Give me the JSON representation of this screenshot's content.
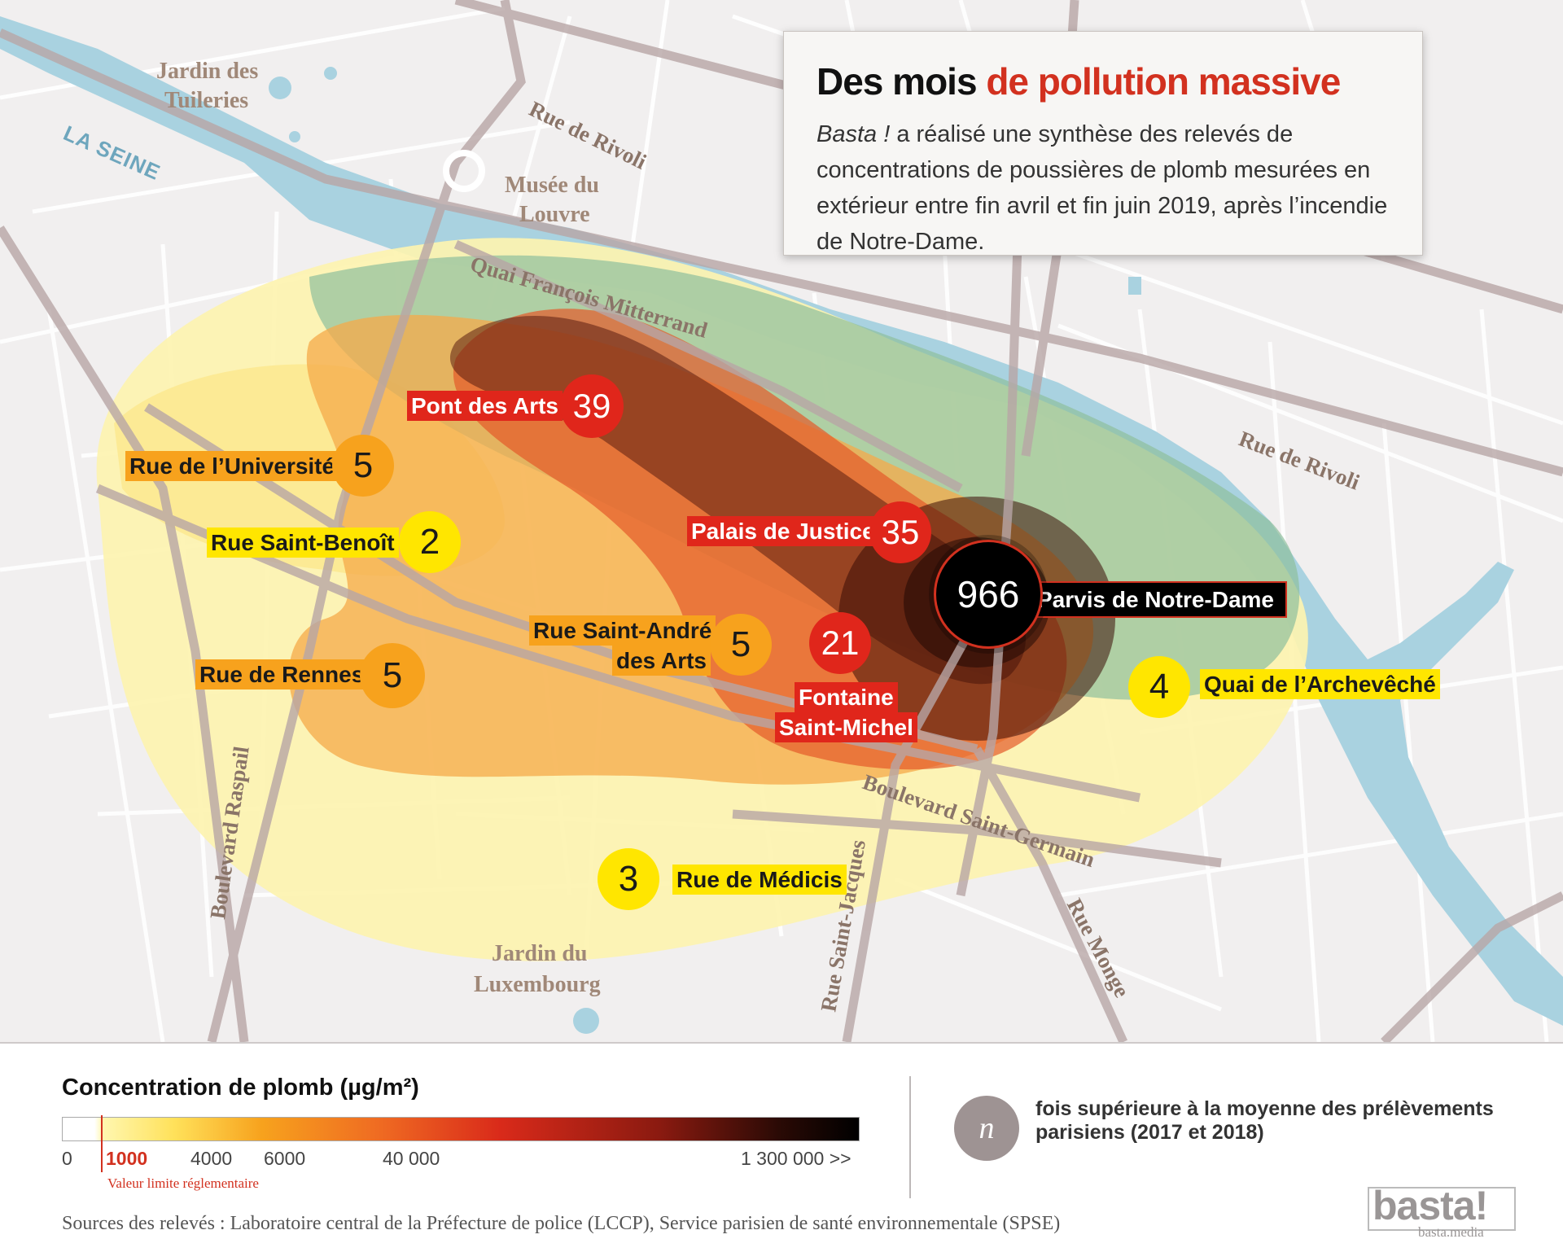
{
  "title": {
    "main": "Des mois",
    "accent": "de pollution massive",
    "intro_italic": "Basta !",
    "intro_rest": " a réalisé une synthèse des relevés de concentrations de poussières de plomb mesurées en extérieur entre fin avril et fin juin 2019, après l’incendie de Notre-Dame."
  },
  "map": {
    "river_label": "LA SEINE",
    "places": {
      "tuileries_1": "Jardin des",
      "tuileries_2": "Tuileries",
      "louvre_1": "Musée du",
      "louvre_2": "Louvre",
      "luxembourg_1": "Jardin du",
      "luxembourg_2": "Luxembourg"
    },
    "streets": {
      "rivoli_1": "Rue de Rivoli",
      "rivoli_2": "Rue de Rivoli",
      "quai_mitterrand": "Quai François Mitterrand",
      "saint_germain": "Boulevard Saint-Germain",
      "raspail": "Boulevard Raspail",
      "saint_jacques": "Rue Saint-Jacques",
      "monge": "Rue Monge"
    },
    "colors": {
      "river": "#a9d2e0",
      "zone_light_yellow": "#fdf3b0",
      "zone_yellow": "#fbe27a",
      "zone_orange": "#f5a94a",
      "zone_red": "#e45a2a",
      "zone_dark": "#5a1e10",
      "zone_green": "#8fbf9c",
      "roads": "#c9b9b9"
    },
    "sites": [
      {
        "key": "pont_arts",
        "label": "Pont des Arts",
        "value": "39",
        "level": "red"
      },
      {
        "key": "universite",
        "label": "Rue de l’Université",
        "value": "5",
        "level": "orange"
      },
      {
        "key": "saint_benoit",
        "label": "Rue Saint-Benoît",
        "value": "2",
        "level": "yellow"
      },
      {
        "key": "palais_justice",
        "label": "Palais de Justice",
        "value": "35",
        "level": "red"
      },
      {
        "key": "notre_dame",
        "label": "Parvis de Notre-Dame",
        "value": "966",
        "level": "black"
      },
      {
        "key": "saint_andre",
        "label_1": "Rue Saint-André",
        "label_2": "des Arts",
        "value": "5",
        "level": "orange"
      },
      {
        "key": "fontaine",
        "label_1": "Fontaine",
        "label_2": "Saint-Michel",
        "value": "21",
        "level": "red"
      },
      {
        "key": "rennes",
        "label": "Rue de Rennes",
        "value": "5",
        "level": "orange"
      },
      {
        "key": "archeveche",
        "label": "Quai de l’Archevêché",
        "value": "4",
        "level": "yellow"
      },
      {
        "key": "medicis",
        "label": "Rue de Médicis",
        "value": "3",
        "level": "yellow"
      }
    ]
  },
  "legend": {
    "title": "Concentration de plomb (µg/m²)",
    "ticks": [
      "0",
      "1000",
      "4000",
      "6000",
      "40 000",
      "1 300 000 >>"
    ],
    "limit_label": "Valeur limite réglementaire",
    "n_symbol": "n",
    "n_text": "fois supérieure à la moyenne des prélèvements parisiens (2017 et 2018)"
  },
  "sources": "Sources des relevés : Laboratoire central de la Préfecture de police (LCCP), Service parisien de santé environnementale (SPSE)",
  "brand": {
    "name": "basta!",
    "url": "basta.media"
  }
}
